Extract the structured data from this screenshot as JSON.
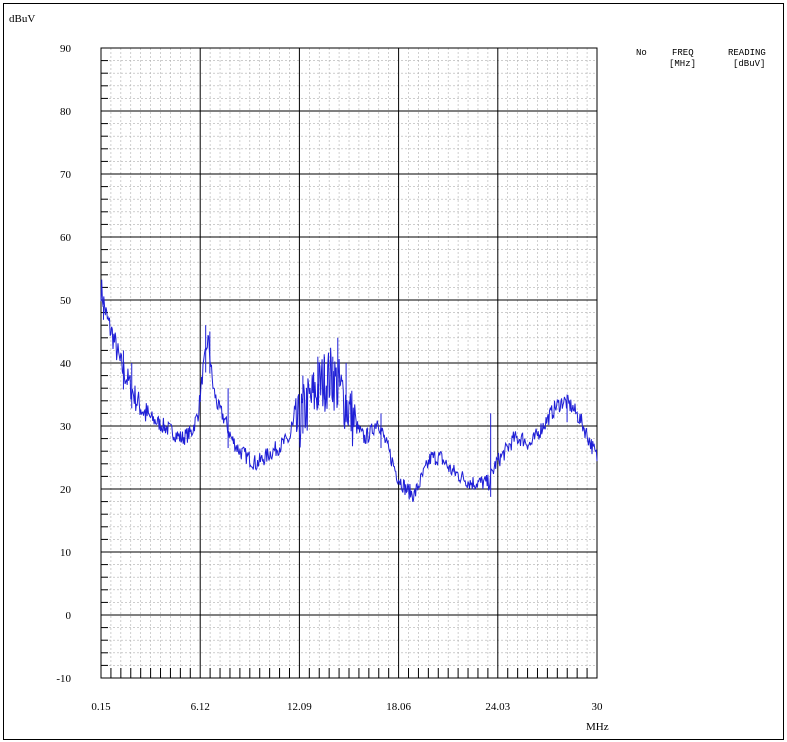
{
  "chart_data": {
    "type": "line",
    "ylabel": "dBuV",
    "xlabel": "MHz",
    "xlim": [
      0.15,
      30
    ],
    "ylim": [
      -10,
      90
    ],
    "x_ticks": [
      "0.15",
      "6.12",
      "12.09",
      "18.06",
      "24.03",
      "30"
    ],
    "y_ticks": [
      "90",
      "80",
      "70",
      "60",
      "50",
      "40",
      "30",
      "20",
      "10",
      "0",
      "-10"
    ],
    "grid": true,
    "line_color": "#1f1fd6",
    "table_headers": {
      "no": "No",
      "freq": "FREQ",
      "freq_unit": "[MHz]",
      "reading": "READING",
      "reading_unit": "[dBuV]"
    },
    "series": [
      {
        "x": [
          0.15,
          0.5,
          0.9,
          1.3,
          1.8,
          2.3,
          2.8,
          3.3,
          3.9,
          4.5,
          5.0,
          5.6,
          6.0,
          6.3,
          6.6,
          6.9,
          7.2,
          7.6,
          8.0,
          8.5,
          9.0,
          9.5,
          10.0,
          10.5,
          11.0,
          11.5,
          12.0,
          12.5,
          13.0,
          13.5,
          14.0,
          14.5,
          15.0,
          15.5,
          16.0,
          16.4,
          16.8,
          17.2,
          17.6,
          18.0,
          18.5,
          19.0,
          19.5,
          20.0,
          20.6,
          21.2,
          21.8,
          22.4,
          23.0,
          23.5,
          23.9,
          24.5,
          25.0,
          25.5,
          26.0,
          26.5,
          27.0,
          27.5,
          28.0,
          28.5,
          29.0,
          29.5,
          30.0
        ],
        "y": [
          52,
          47,
          44,
          40,
          37,
          34,
          32,
          31,
          30,
          29,
          28,
          29,
          32,
          39,
          44,
          36,
          33,
          31,
          28,
          26,
          25,
          24,
          25,
          26,
          27,
          28,
          30,
          33,
          35,
          37,
          38,
          36,
          33,
          30,
          28,
          29,
          31,
          28,
          25,
          22,
          20,
          19,
          22,
          25,
          25,
          23,
          22,
          21,
          21,
          21,
          24,
          26,
          28,
          28,
          27,
          29,
          31,
          33,
          34,
          33,
          31,
          28,
          25
        ]
      }
    ],
    "spikes": [
      {
        "x": 0.3,
        "y": 49
      },
      {
        "x": 1.5,
        "y": 42
      },
      {
        "x": 2.0,
        "y": 40
      },
      {
        "x": 6.45,
        "y": 46
      },
      {
        "x": 6.7,
        "y": 45
      },
      {
        "x": 7.8,
        "y": 36
      },
      {
        "x": 12.3,
        "y": 38
      },
      {
        "x": 13.2,
        "y": 41
      },
      {
        "x": 13.6,
        "y": 41
      },
      {
        "x": 14.1,
        "y": 41
      },
      {
        "x": 14.4,
        "y": 44
      },
      {
        "x": 14.9,
        "y": 40
      },
      {
        "x": 17.0,
        "y": 32
      },
      {
        "x": 23.6,
        "y": 32
      },
      {
        "x": 28.2,
        "y": 35
      }
    ]
  }
}
